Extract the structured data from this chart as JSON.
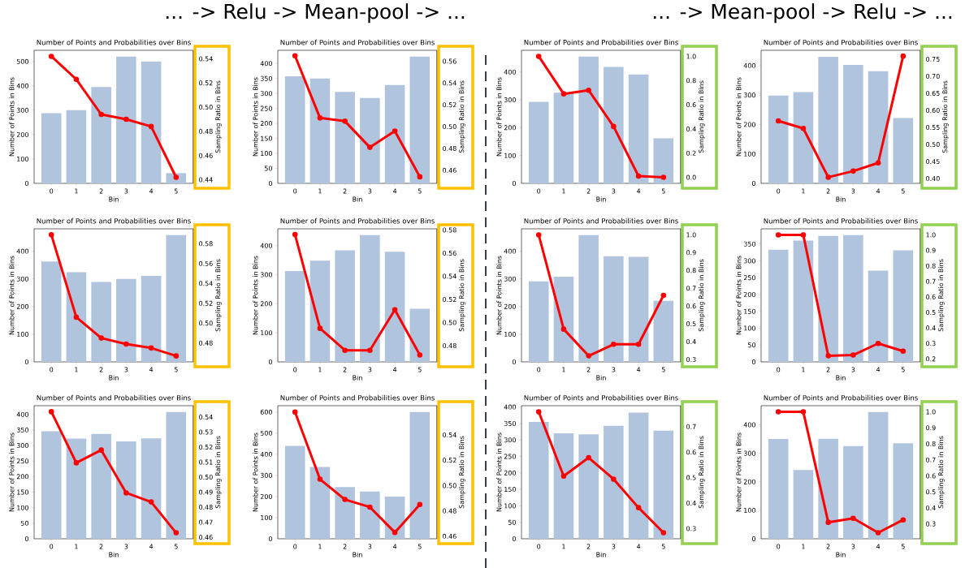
{
  "chart_data": [
    {
      "type": "bar",
      "title": "Number of Points and Probabilities over Bins",
      "xlabel": "Bin",
      "ylabel": "Number of Points in Bins",
      "y2label": "Sampling Ratio in Bins",
      "annotations": [
        "... -> Relu -> Mean-pool -> ..."
      ],
      "categories": [
        "0",
        "1",
        "2",
        "3",
        "4",
        "5"
      ],
      "ylim": [
        0,
        546
      ],
      "yticks": [
        0,
        100,
        200,
        300,
        400,
        500
      ],
      "y2lim": [
        0.437,
        0.547
      ],
      "y2ticks": [
        0.44,
        0.46,
        0.48,
        {
          "value": 0.5,
          "label": "0.50"
        },
        0.52,
        0.54
      ],
      "series": [
        {
          "color": "#b0c4de",
          "values": [
            288,
            300,
            395,
            520,
            500,
            42
          ]
        },
        {
          "type": "line",
          "axis": "y2",
          "color": "#ff0000",
          "marker": "circle",
          "values": [
            0.542,
            0.523,
            0.494,
            0.49,
            0.484,
            0.442
          ]
        }
      ]
    },
    {
      "type": "bar",
      "title": "Number of Points and Probabilities over Bins",
      "xlabel": "Bin",
      "ylabel": "Number of Points in Bins",
      "y2label": "Sampling Ratio in Bins",
      "categories": [
        "0",
        "1",
        "2",
        "3",
        "4",
        "5"
      ],
      "ylim": [
        0,
        444
      ],
      "yticks": [
        0,
        50,
        100,
        150,
        200,
        250,
        300,
        350,
        400
      ],
      "y2lim": [
        0.448,
        0.57
      ],
      "y2ticks": [
        0.46,
        0.48,
        {
          "value": 0.5,
          "label": "0.50"
        },
        0.52,
        0.54,
        0.56
      ],
      "series": [
        {
          "color": "#b0c4de",
          "values": [
            357,
            350,
            305,
            285,
            328,
            423
          ]
        },
        {
          "type": "line",
          "axis": "y2",
          "color": "#ff0000",
          "marker": "circle",
          "values": [
            0.565,
            0.508,
            0.505,
            0.481,
            0.496,
            0.454
          ]
        }
      ]
    },
    {
      "type": "bar",
      "title": "Number of Points and Probabilities over Bins",
      "xlabel": "Bin",
      "ylabel": "Number of Points in Bins",
      "y2label": "Sampling Ratio in Bins",
      "annotations": [
        "... -> Mean-pool -> Relu -> ..."
      ],
      "categories": [
        "0",
        "1",
        "2",
        "3",
        "4",
        "5"
      ],
      "ylim": [
        0,
        478
      ],
      "yticks": [
        0,
        100,
        200,
        300,
        400
      ],
      "y2lim": [
        -0.05,
        1.05
      ],
      "y2ticks": [
        {
          "value": 0,
          "label": "0.0"
        },
        0.2,
        0.4,
        0.6,
        0.8,
        {
          "value": 1,
          "label": "1.0"
        }
      ],
      "series": [
        {
          "color": "#b0c4de",
          "values": [
            293,
            326,
            455,
            418,
            391,
            162
          ]
        },
        {
          "type": "line",
          "axis": "y2",
          "color": "#ff0000",
          "marker": "circle",
          "values": [
            1.0,
            0.69,
            0.72,
            0.42,
            0.01,
            0.0
          ]
        }
      ]
    },
    {
      "type": "bar",
      "title": "Number of Points and Probabilities over Bins",
      "xlabel": "Bin",
      "ylabel": "Number of Points in Bins",
      "y2label": "Sampling Ratio in Bins",
      "categories": [
        "0",
        "1",
        "2",
        "3",
        "4",
        "5"
      ],
      "ylim": [
        0,
        452
      ],
      "yticks": [
        0,
        100,
        200,
        300,
        400
      ],
      "y2lim": [
        0.386,
        0.776
      ],
      "y2ticks": [
        {
          "value": 0.4,
          "label": "0.40"
        },
        0.45,
        {
          "value": 0.5,
          "label": "0.50"
        },
        0.55,
        {
          "value": 0.6,
          "label": "0.60"
        },
        0.65,
        {
          "value": 0.7,
          "label": "0.70"
        },
        0.75
      ],
      "series": [
        {
          "color": "#b0c4de",
          "values": [
            298,
            310,
            430,
            402,
            381,
            222
          ]
        },
        {
          "type": "line",
          "axis": "y2",
          "color": "#ff0000",
          "marker": "circle",
          "values": [
            0.569,
            0.547,
            0.404,
            0.422,
            0.446,
            0.759
          ]
        }
      ]
    },
    {
      "type": "bar",
      "title": "Number of Points and Probabilities over Bins",
      "xlabel": "Bin",
      "ylabel": "Number of Points in Bins",
      "y2label": "Sampling Ratio in Bins",
      "categories": [
        "0",
        "1",
        "2",
        "3",
        "4",
        "5"
      ],
      "ylim": [
        0,
        481
      ],
      "yticks": [
        0,
        100,
        200,
        300,
        400
      ],
      "y2lim": [
        0.461,
        0.595
      ],
      "y2ticks": [
        0.48,
        {
          "value": 0.5,
          "label": "0.50"
        },
        0.52,
        0.54,
        0.56,
        0.58
      ],
      "series": [
        {
          "color": "#b0c4de",
          "values": [
            363,
            324,
            289,
            300,
            311,
            458
          ]
        },
        {
          "type": "line",
          "axis": "y2",
          "color": "#ff0000",
          "marker": "circle",
          "values": [
            0.589,
            0.506,
            0.485,
            0.479,
            0.475,
            0.467
          ]
        }
      ]
    },
    {
      "type": "bar",
      "title": "Number of Points and Probabilities over Bins",
      "xlabel": "Bin",
      "ylabel": "Number of Points in Bins",
      "y2label": "Sampling Ratio in Bins",
      "categories": [
        "0",
        "1",
        "2",
        "3",
        "4",
        "5"
      ],
      "ylim": [
        0,
        458
      ],
      "yticks": [
        0,
        100,
        200,
        300,
        400
      ],
      "y2lim": [
        0.466,
        0.581
      ],
      "y2ticks": [
        0.48,
        {
          "value": 0.5,
          "label": "0.50"
        },
        0.52,
        0.54,
        0.56,
        0.58
      ],
      "series": [
        {
          "color": "#b0c4de",
          "values": [
            313,
            348,
            384,
            436,
            379,
            183
          ]
        },
        {
          "type": "line",
          "axis": "y2",
          "color": "#ff0000",
          "marker": "circle",
          "values": [
            0.576,
            0.495,
            0.476,
            0.476,
            0.511,
            0.472
          ]
        }
      ]
    },
    {
      "type": "bar",
      "title": "Number of Points and Probabilities over Bins",
      "xlabel": "Bin",
      "ylabel": "Number of Points in Bins",
      "y2label": "Sampling Ratio in Bins",
      "categories": [
        "0",
        "1",
        "2",
        "3",
        "4",
        "5"
      ],
      "ylim": [
        0,
        481
      ],
      "yticks": [
        0,
        100,
        200,
        300,
        400
      ],
      "y2lim": [
        0.286,
        1.034
      ],
      "y2ticks": [
        0.3,
        0.4,
        0.5,
        0.6,
        0.7,
        0.8,
        0.9,
        {
          "value": 1,
          "label": "1.0"
        }
      ],
      "series": [
        {
          "color": "#b0c4de",
          "values": [
            291,
            308,
            458,
            382,
            380,
            221
          ]
        },
        {
          "type": "line",
          "axis": "y2",
          "color": "#ff0000",
          "marker": "circle",
          "values": [
            1.0,
            0.47,
            0.32,
            0.385,
            0.385,
            0.66
          ]
        }
      ]
    },
    {
      "type": "bar",
      "title": "Number of Points and Probabilities over Bins",
      "xlabel": "Bin",
      "ylabel": "Number of Points in Bins",
      "y2label": "Sampling Ratio in Bins",
      "categories": [
        "0",
        "1",
        "2",
        "3",
        "4",
        "5"
      ],
      "ylim": [
        0,
        395
      ],
      "yticks": [
        0,
        50,
        100,
        150,
        200,
        250,
        300,
        350
      ],
      "y2lim": [
        0.181,
        1.039
      ],
      "y2ticks": [
        0.2,
        0.3,
        0.4,
        0.5,
        0.6,
        0.7,
        0.8,
        0.9,
        {
          "value": 1,
          "label": "1.0"
        }
      ],
      "series": [
        {
          "color": "#b0c4de",
          "values": [
            333,
            360,
            374,
            376,
            271,
            331
          ]
        },
        {
          "type": "line",
          "axis": "y2",
          "color": "#ff0000",
          "marker": "circle",
          "values": [
            1.0,
            1.0,
            0.22,
            0.225,
            0.3,
            0.25
          ]
        }
      ]
    },
    {
      "type": "bar",
      "title": "Number of Points and Probabilities over Bins",
      "xlabel": "Bin",
      "ylabel": "Number of Points in Bins",
      "y2label": "Sampling Ratio in Bins",
      "categories": [
        "0",
        "1",
        "2",
        "3",
        "4",
        "5"
      ],
      "ylim": [
        0,
        428
      ],
      "yticks": [
        0,
        50,
        100,
        150,
        200,
        250,
        300,
        350,
        400
      ],
      "y2lim": [
        0.459,
        0.5475
      ],
      "y2ticks": [
        0.46,
        0.47,
        0.48,
        0.49,
        {
          "value": 0.5,
          "label": "0.50"
        },
        0.51,
        0.52,
        0.53,
        0.54
      ],
      "series": [
        {
          "color": "#b0c4de",
          "values": [
            346,
            322,
            337,
            313,
            323,
            408
          ]
        },
        {
          "type": "line",
          "axis": "y2",
          "color": "#ff0000",
          "marker": "circle",
          "values": [
            0.5435,
            0.5095,
            0.518,
            0.4895,
            0.4835,
            0.463
          ]
        }
      ]
    },
    {
      "type": "bar",
      "title": "Number of Points and Probabilities over Bins",
      "xlabel": "Bin",
      "ylabel": "Number of Points in Bins",
      "y2label": "Sampling Ratio in Bins",
      "categories": [
        "0",
        "1",
        "2",
        "3",
        "4",
        "5"
      ],
      "ylim": [
        0,
        630
      ],
      "yticks": [
        0,
        100,
        200,
        300,
        400,
        500,
        600
      ],
      "y2lim": [
        0.458,
        0.563
      ],
      "y2ticks": [
        0.46,
        0.48,
        {
          "value": 0.5,
          "label": "0.50"
        },
        0.52,
        0.54
      ],
      "series": [
        {
          "color": "#b0c4de",
          "values": [
            440,
            340,
            245,
            224,
            200,
            600
          ]
        },
        {
          "type": "line",
          "axis": "y2",
          "color": "#ff0000",
          "marker": "circle",
          "values": [
            0.558,
            0.505,
            0.489,
            0.483,
            0.463,
            0.485
          ]
        }
      ]
    },
    {
      "type": "bar",
      "title": "Number of Points and Probabilities over Bins",
      "xlabel": "Bin",
      "ylabel": "Number of Points in Bins",
      "y2label": "Sampling Ratio in Bins",
      "categories": [
        "0",
        "1",
        "2",
        "3",
        "4",
        "5"
      ],
      "ylim": [
        0,
        404
      ],
      "yticks": [
        0,
        50,
        100,
        150,
        200,
        250,
        300,
        350,
        400
      ],
      "y2lim": [
        0.26,
        0.782
      ],
      "y2ticks": [
        0.3,
        0.4,
        0.5,
        0.6,
        0.7
      ],
      "series": [
        {
          "color": "#b0c4de",
          "values": [
            355,
            320,
            317,
            343,
            383,
            328
          ]
        },
        {
          "type": "line",
          "axis": "y2",
          "color": "#ff0000",
          "marker": "circle",
          "values": [
            0.758,
            0.506,
            0.578,
            0.494,
            0.382,
            0.284
          ]
        }
      ]
    },
    {
      "type": "bar",
      "title": "Number of Points and Probabilities over Bins",
      "xlabel": "Bin",
      "ylabel": "Number of Points in Bins",
      "y2label": "Sampling Ratio in Bins",
      "categories": [
        "0",
        "1",
        "2",
        "3",
        "4",
        "5"
      ],
      "ylim": [
        0,
        467
      ],
      "yticks": [
        0,
        100,
        200,
        300,
        400
      ],
      "y2lim": [
        0.207,
        1.038
      ],
      "y2ticks": [
        0.3,
        0.4,
        0.5,
        0.6,
        0.7,
        0.8,
        0.9,
        {
          "value": 1,
          "label": "1.0"
        }
      ],
      "series": [
        {
          "color": "#b0c4de",
          "values": [
            350,
            241,
            351,
            325,
            445,
            335
          ]
        },
        {
          "type": "line",
          "axis": "y2",
          "color": "#ff0000",
          "marker": "circle",
          "values": [
            1.0,
            1.0,
            0.31,
            0.335,
            0.245,
            0.325
          ]
        }
      ]
    }
  ]
}
